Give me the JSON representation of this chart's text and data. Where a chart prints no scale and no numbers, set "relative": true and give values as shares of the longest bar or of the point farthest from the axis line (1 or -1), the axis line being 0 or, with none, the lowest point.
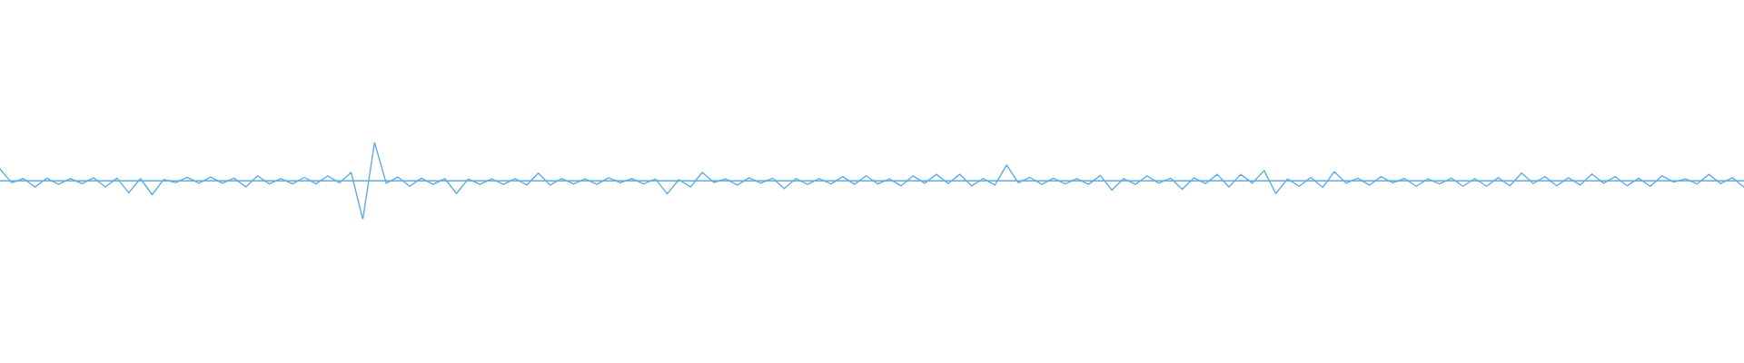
{
  "chart_data": {
    "type": "line",
    "relative": true,
    "categories": [
      null,
      null,
      null,
      null,
      null,
      null,
      null,
      null,
      null,
      null,
      null,
      null,
      null,
      null,
      null,
      null,
      null,
      null,
      null,
      null,
      null,
      null,
      null,
      null,
      null,
      null,
      null,
      null,
      null,
      null,
      null,
      null,
      null,
      null,
      null,
      null,
      null,
      null,
      null,
      null,
      null,
      null,
      null,
      null,
      null,
      null,
      null,
      null,
      null,
      null,
      null,
      null,
      null,
      null,
      null,
      null,
      null,
      null,
      null,
      null,
      null,
      null,
      null,
      null,
      null,
      null,
      null,
      null,
      null,
      null,
      null,
      null,
      null,
      null,
      null,
      null,
      null,
      null,
      null,
      null,
      null,
      null,
      null,
      null,
      null,
      null,
      null,
      null,
      null,
      null,
      null,
      null,
      null,
      null,
      null,
      null,
      null,
      null,
      null,
      null,
      null,
      null,
      null,
      null,
      null,
      null,
      null,
      null,
      null,
      null,
      null,
      null,
      null,
      null,
      null,
      null,
      null,
      null,
      null,
      null,
      null,
      null,
      null,
      null,
      null,
      null,
      null,
      null,
      null,
      null,
      null,
      null,
      null,
      null,
      null,
      null,
      null,
      null,
      null,
      null,
      null,
      null,
      null,
      null,
      null,
      null,
      null,
      null,
      null,
      null
    ],
    "series": [
      {
        "color": "#5dade2",
        "values": [
          0.31,
          -0.05,
          0.06,
          -0.16,
          0.07,
          -0.09,
          0.06,
          -0.07,
          0.08,
          -0.16,
          0.07,
          -0.31,
          0.06,
          -0.36,
          0.04,
          -0.05,
          0.09,
          -0.06,
          0.1,
          -0.06,
          0.07,
          -0.16,
          0.13,
          -0.08,
          0.06,
          -0.08,
          0.09,
          -0.08,
          0.13,
          -0.05,
          0.22,
          -1.0,
          1.0,
          -0.06,
          0.1,
          -0.14,
          0.07,
          -0.09,
          0.06,
          -0.33,
          0.05,
          -0.09,
          0.05,
          -0.09,
          0.06,
          -0.11,
          0.2,
          -0.11,
          0.06,
          -0.08,
          0.05,
          -0.09,
          0.08,
          -0.05,
          0.06,
          -0.08,
          0.05,
          -0.34,
          0.03,
          -0.16,
          0.22,
          -0.04,
          0.05,
          -0.11,
          0.08,
          -0.06,
          0.07,
          -0.2,
          0.06,
          -0.09,
          0.06,
          -0.08,
          0.11,
          -0.09,
          0.13,
          -0.08,
          0.05,
          -0.13,
          0.13,
          -0.06,
          0.17,
          -0.07,
          0.17,
          -0.13,
          0.06,
          -0.11,
          0.41,
          -0.05,
          0.09,
          -0.09,
          0.07,
          -0.08,
          0.06,
          -0.09,
          0.14,
          -0.24,
          0.06,
          -0.09,
          0.13,
          -0.06,
          0.07,
          -0.22,
          0.08,
          -0.07,
          0.17,
          -0.16,
          0.17,
          -0.06,
          0.27,
          -0.33,
          0.05,
          -0.14,
          0.09,
          -0.17,
          0.24,
          -0.06,
          0.07,
          -0.11,
          0.11,
          -0.05,
          0.06,
          -0.14,
          0.05,
          -0.08,
          0.07,
          -0.14,
          0.06,
          -0.14,
          0.08,
          -0.13,
          0.2,
          -0.07,
          0.11,
          -0.13,
          0.08,
          -0.11,
          0.18,
          -0.06,
          0.11,
          -0.13,
          0.07,
          -0.14,
          0.13,
          -0.03,
          0.05,
          -0.08,
          0.17,
          -0.07,
          0.08,
          -0.16
        ]
      }
    ],
    "ref_lines": [
      {
        "axis": "y",
        "value": 0,
        "color": "#5dade2"
      }
    ]
  }
}
